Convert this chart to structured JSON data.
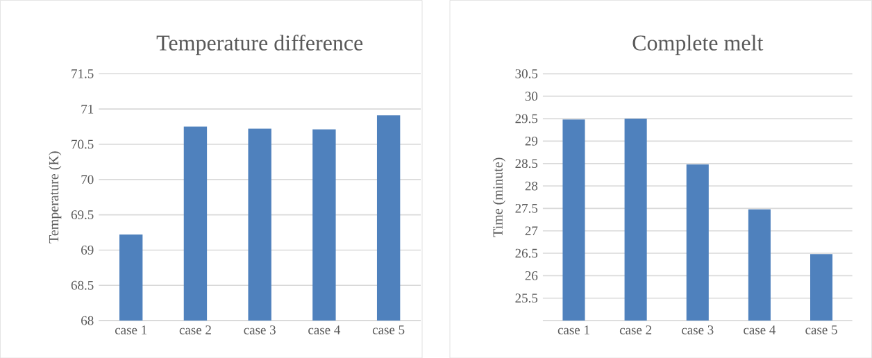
{
  "chart_data": [
    {
      "type": "bar",
      "title": "Temperature difference",
      "ylabel": "Temperature (K)",
      "categories": [
        "case 1",
        "case 2",
        "case 3",
        "case 4",
        "case 5"
      ],
      "values": [
        69.22,
        70.75,
        70.72,
        70.71,
        70.91
      ],
      "color": "#4f81bd",
      "ylim": [
        68,
        71.5
      ],
      "yticks": [
        68,
        68.5,
        69,
        69.5,
        70,
        70.5,
        71,
        71.5
      ],
      "grid": "y"
    },
    {
      "type": "bar",
      "title": "Complete melt",
      "ylabel": "Time (minute)",
      "categories": [
        "case 1",
        "case 2",
        "case 3",
        "case 4",
        "case 5"
      ],
      "values": [
        29.48,
        29.5,
        28.48,
        27.48,
        26.48
      ],
      "color": "#4f81bd",
      "ylim": [
        25,
        30.5
      ],
      "yticks": [
        25.5,
        26,
        26.5,
        27,
        27.5,
        28,
        28.5,
        29,
        29.5,
        30,
        30.5
      ],
      "grid": "y"
    }
  ]
}
